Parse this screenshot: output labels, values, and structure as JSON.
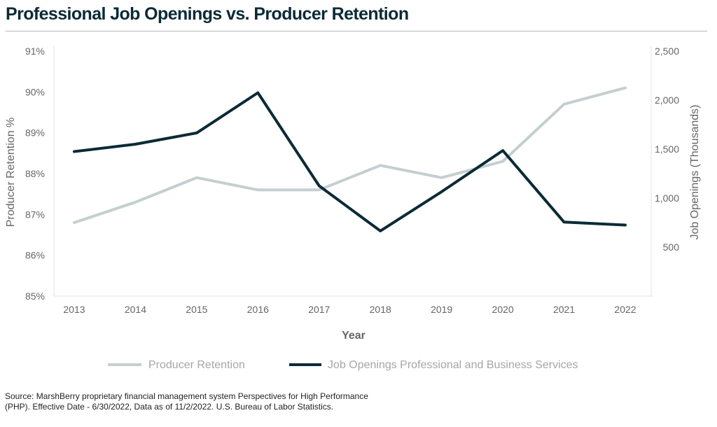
{
  "title": "Professional Job Openings vs. Producer Retention",
  "source": {
    "line1": "Source: MarshBerry proprietary financial management system Perspectives for High Performance",
    "line2": "(PHP). Effective Date - 6/30/2022, Data as of 11/2/2022. U.S. Bureau of Labor Statistics."
  },
  "colors": {
    "producer_retention": "#c3cfd0",
    "job_openings": "#0b2a36",
    "axis_text": "#666666",
    "axis_title": "#666666",
    "legend_text": "#a6a6a6"
  },
  "chart_data": {
    "type": "line",
    "x": [
      "2013",
      "2014",
      "2015",
      "2016",
      "2017",
      "2018",
      "2019",
      "2020",
      "2021",
      "2022"
    ],
    "xlabel": "Year",
    "ylabel_left": "Producer Retention %",
    "ylabel_right": "Job Openings (Thousands)",
    "ylim_left": [
      85,
      91
    ],
    "ylim_right": [
      0,
      2500
    ],
    "yticks_left": [
      "85%",
      "86%",
      "87%",
      "88%",
      "89%",
      "90%",
      "91%"
    ],
    "yticks_right": [
      "500",
      "1,000",
      "1,500",
      "2,000",
      "2,500"
    ],
    "grid": false,
    "legend_position": "bottom",
    "series": [
      {
        "name": "Producer Retention",
        "axis": "left",
        "color_key": "producer_retention",
        "values": [
          86.8,
          87.3,
          87.9,
          87.6,
          87.6,
          88.2,
          87.9,
          88.3,
          89.7,
          90.1
        ]
      },
      {
        "name": "Job Openings Professional and Business Services",
        "axis": "right",
        "color_key": "job_openings",
        "values": [
          1475,
          1550,
          1665,
          2075,
          1125,
          665,
          1065,
          1485,
          755,
          725
        ]
      }
    ]
  }
}
